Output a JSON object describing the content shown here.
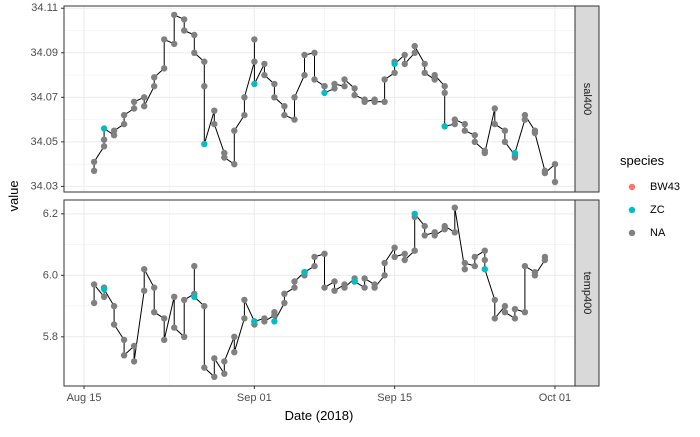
{
  "chart_data": {
    "type": "scatter",
    "xlabel": "Date (2018)",
    "ylabel": "value",
    "x_date_ticks": [
      {
        "date": "2018-08-15",
        "label": "Aug 15"
      },
      {
        "date": "2018-09-01",
        "label": "Sep 01"
      },
      {
        "date": "2018-09-15",
        "label": "Sep 15"
      },
      {
        "date": "2018-10-01",
        "label": "Oct 01"
      }
    ],
    "xlim": [
      "2018-08-13",
      "2018-10-03"
    ],
    "legend": {
      "title": "species",
      "position": "right",
      "entries": [
        {
          "label": "BW43",
          "color": "#F8766D"
        },
        {
          "label": "ZC",
          "color": "#00BFC4"
        },
        {
          "label": "NA",
          "color": "#808080"
        }
      ]
    },
    "facets": [
      {
        "strip": "sal400",
        "ylim": [
          34.0275,
          34.111
        ],
        "yticks": [
          34.03,
          34.05,
          34.07,
          34.09,
          34.11
        ],
        "ytick_labels": [
          "34.03",
          "34.05",
          "34.07",
          "34.09",
          "34.11"
        ],
        "series": [
          {
            "name": "NA",
            "color": "#808080",
            "points": [
              [
                "2018-08-16",
                34.037
              ],
              [
                "2018-08-16",
                34.041
              ],
              [
                "2018-08-17",
                34.048
              ],
              [
                "2018-08-17",
                34.051
              ],
              [
                "2018-08-18",
                34.053
              ],
              [
                "2018-08-18",
                34.055
              ],
              [
                "2018-08-19",
                34.058
              ],
              [
                "2018-08-19",
                34.062
              ],
              [
                "2018-08-20",
                34.065
              ],
              [
                "2018-08-20",
                34.068
              ],
              [
                "2018-08-21",
                34.07
              ],
              [
                "2018-08-21",
                34.066
              ],
              [
                "2018-08-22",
                34.075
              ],
              [
                "2018-08-22",
                34.079
              ],
              [
                "2018-08-23",
                34.083
              ],
              [
                "2018-08-23",
                34.096
              ],
              [
                "2018-08-24",
                34.094
              ],
              [
                "2018-08-24",
                34.107
              ],
              [
                "2018-08-25",
                34.105
              ],
              [
                "2018-08-25",
                34.1
              ],
              [
                "2018-08-26",
                34.098
              ],
              [
                "2018-08-26",
                34.09
              ],
              [
                "2018-08-27",
                34.086
              ],
              [
                "2018-08-27",
                34.075
              ],
              [
                "2018-08-28",
                34.064
              ],
              [
                "2018-08-28",
                34.058
              ],
              [
                "2018-08-29",
                34.045
              ],
              [
                "2018-08-29",
                34.043
              ],
              [
                "2018-08-30",
                34.04
              ],
              [
                "2018-08-30",
                34.055
              ],
              [
                "2018-08-31",
                34.062
              ],
              [
                "2018-08-31",
                34.07
              ],
              [
                "2018-09-01",
                34.086
              ],
              [
                "2018-09-01",
                34.096
              ],
              [
                "2018-09-02",
                34.085
              ],
              [
                "2018-09-02",
                34.08
              ],
              [
                "2018-09-03",
                34.076
              ],
              [
                "2018-09-03",
                34.07
              ],
              [
                "2018-09-04",
                34.066
              ],
              [
                "2018-09-04",
                34.062
              ],
              [
                "2018-09-05",
                34.06
              ],
              [
                "2018-09-05",
                34.07
              ],
              [
                "2018-09-06",
                34.08
              ],
              [
                "2018-09-06",
                34.089
              ],
              [
                "2018-09-07",
                34.09
              ],
              [
                "2018-09-07",
                34.078
              ],
              [
                "2018-09-08",
                34.075
              ],
              [
                "2018-09-08",
                34.075
              ],
              [
                "2018-09-09",
                34.074
              ],
              [
                "2018-09-09",
                34.076
              ],
              [
                "2018-09-10",
                34.075
              ],
              [
                "2018-09-10",
                34.078
              ],
              [
                "2018-09-11",
                34.074
              ],
              [
                "2018-09-11",
                34.071
              ],
              [
                "2018-09-12",
                34.069
              ],
              [
                "2018-09-12",
                34.068
              ],
              [
                "2018-09-13",
                34.069
              ],
              [
                "2018-09-13",
                34.068
              ],
              [
                "2018-09-14",
                34.068
              ],
              [
                "2018-09-14",
                34.078
              ],
              [
                "2018-09-15",
                34.081
              ],
              [
                "2018-09-15",
                34.086
              ],
              [
                "2018-09-16",
                34.089
              ],
              [
                "2018-09-16",
                34.085
              ],
              [
                "2018-09-17",
                34.09
              ],
              [
                "2018-09-17",
                34.093
              ],
              [
                "2018-09-18",
                34.085
              ],
              [
                "2018-09-18",
                34.081
              ],
              [
                "2018-09-19",
                34.078
              ],
              [
                "2018-09-19",
                34.08
              ],
              [
                "2018-09-20",
                34.075
              ],
              [
                "2018-09-20",
                34.072
              ],
              [
                "2018-09-21",
                34.058
              ],
              [
                "2018-09-21",
                34.06
              ],
              [
                "2018-09-22",
                34.058
              ],
              [
                "2018-09-22",
                34.055
              ],
              [
                "2018-09-23",
                34.053
              ],
              [
                "2018-09-23",
                34.05
              ],
              [
                "2018-09-24",
                34.046
              ],
              [
                "2018-09-24",
                34.045
              ],
              [
                "2018-09-25",
                34.065
              ],
              [
                "2018-09-25",
                34.058
              ],
              [
                "2018-09-26",
                34.055
              ],
              [
                "2018-09-26",
                34.05
              ],
              [
                "2018-09-27",
                34.044
              ],
              [
                "2018-09-27",
                34.043
              ],
              [
                "2018-09-28",
                34.06
              ],
              [
                "2018-09-28",
                34.062
              ],
              [
                "2018-09-29",
                34.055
              ],
              [
                "2018-09-29",
                34.054
              ],
              [
                "2018-09-30",
                34.037
              ],
              [
                "2018-09-30",
                34.036
              ],
              [
                "2018-10-01",
                34.04
              ],
              [
                "2018-10-01",
                34.032
              ]
            ]
          },
          {
            "name": "ZC",
            "color": "#00BFC4",
            "points": [
              [
                "2018-08-17",
                34.056
              ],
              [
                "2018-08-27",
                34.049
              ],
              [
                "2018-09-01",
                34.076
              ],
              [
                "2018-09-08",
                34.072
              ],
              [
                "2018-09-15",
                34.085
              ],
              [
                "2018-09-20",
                34.057
              ],
              [
                "2018-09-27",
                34.045
              ]
            ]
          }
        ]
      },
      {
        "strip": "temp400",
        "ylim": [
          5.64,
          6.245
        ],
        "yticks": [
          5.8,
          6.0,
          6.2
        ],
        "ytick_labels": [
          "5.8",
          "6.0",
          "6.2"
        ],
        "series": [
          {
            "name": "NA",
            "color": "#808080",
            "points": [
              [
                "2018-08-16",
                5.91
              ],
              [
                "2018-08-16",
                5.97
              ],
              [
                "2018-08-17",
                5.93
              ],
              [
                "2018-08-17",
                5.96
              ],
              [
                "2018-08-18",
                5.9
              ],
              [
                "2018-08-18",
                5.84
              ],
              [
                "2018-08-19",
                5.79
              ],
              [
                "2018-08-19",
                5.74
              ],
              [
                "2018-08-20",
                5.77
              ],
              [
                "2018-08-20",
                5.72
              ],
              [
                "2018-08-21",
                5.95
              ],
              [
                "2018-08-21",
                6.02
              ],
              [
                "2018-08-22",
                5.96
              ],
              [
                "2018-08-22",
                5.88
              ],
              [
                "2018-08-23",
                5.86
              ],
              [
                "2018-08-23",
                5.79
              ],
              [
                "2018-08-24",
                5.93
              ],
              [
                "2018-08-24",
                5.83
              ],
              [
                "2018-08-25",
                5.8
              ],
              [
                "2018-08-25",
                5.92
              ],
              [
                "2018-08-26",
                5.94
              ],
              [
                "2018-08-26",
                6.03
              ],
              [
                "2018-08-27",
                5.9
              ],
              [
                "2018-08-27",
                5.7
              ],
              [
                "2018-08-28",
                5.67
              ],
              [
                "2018-08-28",
                5.73
              ],
              [
                "2018-08-29",
                5.68
              ],
              [
                "2018-08-29",
                5.72
              ],
              [
                "2018-08-30",
                5.8
              ],
              [
                "2018-08-30",
                5.75
              ],
              [
                "2018-08-31",
                5.86
              ],
              [
                "2018-08-31",
                5.92
              ],
              [
                "2018-09-01",
                5.85
              ],
              [
                "2018-09-01",
                5.84
              ],
              [
                "2018-09-02",
                5.86
              ],
              [
                "2018-09-02",
                5.85
              ],
              [
                "2018-09-03",
                5.87
              ],
              [
                "2018-09-03",
                5.88
              ],
              [
                "2018-09-04",
                5.91
              ],
              [
                "2018-09-04",
                5.94
              ],
              [
                "2018-09-05",
                5.96
              ],
              [
                "2018-09-05",
                5.98
              ],
              [
                "2018-09-06",
                6.01
              ],
              [
                "2018-09-06",
                6.0
              ],
              [
                "2018-09-07",
                6.03
              ],
              [
                "2018-09-07",
                6.06
              ],
              [
                "2018-09-08",
                6.07
              ],
              [
                "2018-09-08",
                5.96
              ],
              [
                "2018-09-09",
                5.98
              ],
              [
                "2018-09-09",
                5.95
              ],
              [
                "2018-09-10",
                5.97
              ],
              [
                "2018-09-10",
                5.96
              ],
              [
                "2018-09-11",
                5.99
              ],
              [
                "2018-09-11",
                5.98
              ],
              [
                "2018-09-12",
                5.96
              ],
              [
                "2018-09-12",
                5.99
              ],
              [
                "2018-09-13",
                5.97
              ],
              [
                "2018-09-13",
                5.96
              ],
              [
                "2018-09-14",
                6.0
              ],
              [
                "2018-09-14",
                6.04
              ],
              [
                "2018-09-15",
                6.09
              ],
              [
                "2018-09-15",
                6.06
              ],
              [
                "2018-09-16",
                6.07
              ],
              [
                "2018-09-16",
                6.05
              ],
              [
                "2018-09-17",
                6.08
              ],
              [
                "2018-09-17",
                6.19
              ],
              [
                "2018-09-18",
                6.16
              ],
              [
                "2018-09-18",
                6.13
              ],
              [
                "2018-09-19",
                6.14
              ],
              [
                "2018-09-19",
                6.13
              ],
              [
                "2018-09-20",
                6.15
              ],
              [
                "2018-09-20",
                6.16
              ],
              [
                "2018-09-21",
                6.14
              ],
              [
                "2018-09-21",
                6.22
              ],
              [
                "2018-09-22",
                6.02
              ],
              [
                "2018-09-22",
                6.04
              ],
              [
                "2018-09-23",
                6.03
              ],
              [
                "2018-09-23",
                6.06
              ],
              [
                "2018-09-24",
                6.08
              ],
              [
                "2018-09-24",
                6.05
              ],
              [
                "2018-09-25",
                5.92
              ],
              [
                "2018-09-25",
                5.86
              ],
              [
                "2018-09-26",
                5.9
              ],
              [
                "2018-09-26",
                5.88
              ],
              [
                "2018-09-27",
                5.86
              ],
              [
                "2018-09-27",
                5.89
              ],
              [
                "2018-09-28",
                5.88
              ],
              [
                "2018-09-28",
                6.03
              ],
              [
                "2018-09-29",
                6.01
              ],
              [
                "2018-09-29",
                6.0
              ],
              [
                "2018-09-30",
                6.05
              ],
              [
                "2018-09-30",
                6.06
              ]
            ]
          },
          {
            "name": "ZC",
            "color": "#00BFC4",
            "points": [
              [
                "2018-08-17",
                5.955
              ],
              [
                "2018-08-26",
                5.93
              ],
              [
                "2018-09-01",
                5.85
              ],
              [
                "2018-09-03",
                5.85
              ],
              [
                "2018-09-06",
                6.01
              ],
              [
                "2018-09-11",
                5.98
              ],
              [
                "2018-09-17",
                6.2
              ],
              [
                "2018-09-24",
                6.02
              ]
            ]
          }
        ]
      }
    ]
  }
}
